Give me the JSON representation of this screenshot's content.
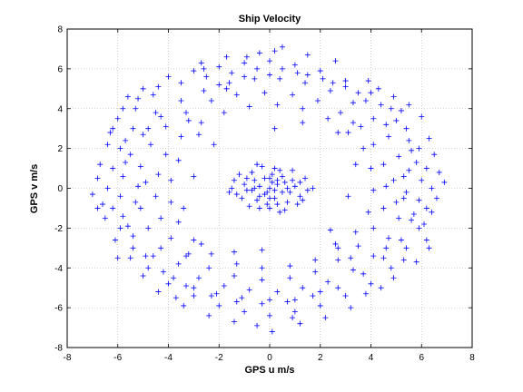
{
  "chart_data": {
    "type": "scatter",
    "title": "Ship Velocity",
    "xlabel": "GPS u m/s",
    "ylabel": "GPS v m/s",
    "xlim": [
      -8,
      8
    ],
    "ylim": [
      -8,
      8
    ],
    "xticks": [
      -8,
      -6,
      -4,
      -2,
      0,
      2,
      4,
      6,
      8
    ],
    "yticks": [
      -8,
      -6,
      -4,
      -2,
      0,
      2,
      4,
      6,
      8
    ],
    "grid": true,
    "marker": "+",
    "color": "#0000ff",
    "series": [
      {
        "values": [
          [
            0.0,
            0.0
          ],
          [
            0.3,
            0.2
          ],
          [
            -0.4,
            0.1
          ],
          [
            0.2,
            -0.5
          ],
          [
            -0.2,
            -0.3
          ],
          [
            0.6,
            0.3
          ],
          [
            -0.6,
            0.4
          ],
          [
            0.1,
            0.7
          ],
          [
            -0.1,
            -0.8
          ],
          [
            0.8,
            -0.2
          ],
          [
            -0.9,
            -0.1
          ],
          [
            0.5,
            0.6
          ],
          [
            -0.5,
            -0.6
          ],
          [
            1.0,
            0.1
          ],
          [
            -1.0,
            0.2
          ],
          [
            0.2,
            1.0
          ],
          [
            0.0,
            -1.0
          ],
          [
            1.2,
            -0.4
          ],
          [
            -1.3,
            -0.3
          ],
          [
            0.7,
            -0.7
          ],
          [
            -0.7,
            0.8
          ],
          [
            1.4,
            0.5
          ],
          [
            -1.5,
            0.0
          ],
          [
            0.4,
            -1.2
          ],
          [
            -0.3,
            1.1
          ],
          [
            1.5,
            -0.1
          ],
          [
            -1.2,
            0.7
          ],
          [
            0.9,
            0.9
          ],
          [
            -0.8,
            -0.9
          ],
          [
            1.1,
            -0.8
          ],
          [
            0.3,
            0.4
          ],
          [
            -0.2,
            0.5
          ],
          [
            0.5,
            -0.2
          ],
          [
            -0.4,
            -0.4
          ],
          [
            0.1,
            0.3
          ],
          [
            -0.1,
            -0.2
          ],
          [
            0.7,
            0.0
          ],
          [
            -0.7,
            -0.1
          ],
          [
            0.0,
            0.5
          ],
          [
            0.0,
            -0.5
          ],
          [
            0.3,
            -0.8
          ],
          [
            -0.6,
            0.0
          ],
          [
            0.9,
            0.4
          ],
          [
            -0.9,
            0.5
          ],
          [
            1.2,
            0.3
          ],
          [
            -1.1,
            -0.5
          ],
          [
            0.4,
            0.9
          ],
          [
            -0.4,
            -1.0
          ],
          [
            1.3,
            -0.6
          ],
          [
            -1.4,
            0.4
          ],
          [
            1.7,
            0.0
          ],
          [
            -1.6,
            -0.2
          ],
          [
            0.6,
            -1.1
          ],
          [
            -0.5,
            1.2
          ],
          [
            0.2,
            -0.1
          ],
          [
            -5.6,
            4.6
          ],
          [
            -5.0,
            5.0
          ],
          [
            -4.0,
            5.6
          ],
          [
            -3.0,
            5.9
          ],
          [
            -2.0,
            6.1
          ],
          [
            -1.0,
            6.3
          ],
          [
            0.0,
            6.4
          ],
          [
            1.0,
            6.2
          ],
          [
            2.0,
            5.9
          ],
          [
            3.0,
            5.4
          ],
          [
            4.0,
            4.8
          ],
          [
            4.8,
            4.0
          ],
          [
            5.4,
            3.0
          ],
          [
            5.9,
            2.0
          ],
          [
            6.2,
            1.0
          ],
          [
            6.4,
            0.0
          ],
          [
            6.2,
            -1.0
          ],
          [
            5.9,
            -2.0
          ],
          [
            5.4,
            -3.0
          ],
          [
            4.8,
            -4.0
          ],
          [
            4.0,
            -4.8
          ],
          [
            3.0,
            -5.4
          ],
          [
            2.0,
            -5.9
          ],
          [
            1.0,
            -6.2
          ],
          [
            0.0,
            -6.4
          ],
          [
            -1.0,
            -6.2
          ],
          [
            -2.0,
            -5.9
          ],
          [
            -3.0,
            -5.4
          ],
          [
            -4.0,
            -4.8
          ],
          [
            -4.8,
            -4.0
          ],
          [
            -5.4,
            -3.0
          ],
          [
            -5.9,
            -2.0
          ],
          [
            -6.2,
            -1.0
          ],
          [
            -6.4,
            0.0
          ],
          [
            -6.2,
            1.0
          ],
          [
            -5.9,
            2.0
          ],
          [
            -5.4,
            3.0
          ],
          [
            -6.0,
            3.5
          ],
          [
            -5.3,
            4.0
          ],
          [
            -4.6,
            4.7
          ],
          [
            -3.5,
            5.3
          ],
          [
            -2.5,
            5.6
          ],
          [
            -1.5,
            5.8
          ],
          [
            -0.5,
            6.0
          ],
          [
            0.5,
            6.0
          ],
          [
            1.5,
            5.7
          ],
          [
            2.5,
            5.3
          ],
          [
            3.5,
            4.8
          ],
          [
            4.4,
            4.2
          ],
          [
            5.0,
            3.4
          ],
          [
            5.5,
            2.4
          ],
          [
            5.8,
            1.3
          ],
          [
            6.0,
            0.4
          ],
          [
            5.9,
            -0.6
          ],
          [
            5.6,
            -1.6
          ],
          [
            5.2,
            -2.6
          ],
          [
            4.5,
            -3.5
          ],
          [
            3.7,
            -4.3
          ],
          [
            2.7,
            -5.0
          ],
          [
            1.7,
            -5.4
          ],
          [
            0.7,
            -5.7
          ],
          [
            -0.3,
            -5.8
          ],
          [
            -1.3,
            -5.7
          ],
          [
            -2.3,
            -5.4
          ],
          [
            -3.3,
            -4.9
          ],
          [
            -4.2,
            -4.2
          ],
          [
            -4.9,
            -3.4
          ],
          [
            -5.4,
            -2.4
          ],
          [
            -5.8,
            -1.4
          ],
          [
            -5.9,
            -0.4
          ],
          [
            -5.8,
            0.6
          ],
          [
            -5.5,
            1.7
          ],
          [
            -5.0,
            2.7
          ],
          [
            -4.3,
            3.6
          ],
          [
            -3.5,
            4.4
          ],
          [
            -2.6,
            4.9
          ],
          [
            -1.6,
            5.3
          ],
          [
            -0.6,
            5.5
          ],
          [
            0.4,
            5.5
          ],
          [
            1.4,
            5.3
          ],
          [
            2.4,
            4.9
          ],
          [
            3.3,
            4.3
          ],
          [
            4.1,
            3.5
          ],
          [
            4.7,
            2.6
          ],
          [
            5.1,
            1.6
          ],
          [
            5.3,
            0.6
          ],
          [
            5.3,
            -0.5
          ],
          [
            5.1,
            -1.5
          ],
          [
            4.7,
            -2.5
          ],
          [
            4.1,
            -3.4
          ],
          [
            3.3,
            -4.1
          ],
          [
            2.3,
            -4.7
          ],
          [
            1.3,
            -5.0
          ],
          [
            0.3,
            -5.2
          ],
          [
            -0.8,
            -5.1
          ],
          [
            -1.8,
            -4.9
          ],
          [
            -2.8,
            -4.5
          ],
          [
            -3.6,
            -3.8
          ],
          [
            -4.3,
            -3.0
          ],
          [
            -4.8,
            -2.0
          ],
          [
            -5.1,
            -1.0
          ],
          [
            -5.2,
            0.1
          ],
          [
            -5.1,
            1.1
          ],
          [
            -4.7,
            2.2
          ],
          [
            -4.1,
            3.1
          ],
          [
            -3.3,
            3.8
          ],
          [
            -2.3,
            4.4
          ],
          [
            -1.3,
            4.7
          ],
          [
            -0.2,
            4.8
          ],
          [
            0.9,
            4.7
          ],
          [
            1.9,
            4.4
          ],
          [
            2.8,
            3.8
          ],
          [
            3.6,
            3.1
          ],
          [
            4.1,
            2.2
          ],
          [
            4.5,
            1.2
          ],
          [
            4.6,
            0.1
          ],
          [
            4.5,
            -1.0
          ],
          [
            4.1,
            -2.0
          ],
          [
            3.5,
            -2.9
          ],
          [
            2.7,
            -3.6
          ],
          [
            1.8,
            -4.2
          ],
          [
            0.8,
            -4.5
          ],
          [
            -0.3,
            -4.6
          ],
          [
            -1.4,
            -4.4
          ],
          [
            -2.4,
            -4.0
          ],
          [
            -3.2,
            -3.3
          ],
          [
            -3.9,
            -2.5
          ],
          [
            -4.3,
            -1.5
          ],
          [
            -4.5,
            -0.4
          ],
          [
            -4.4,
            0.7
          ],
          [
            -4.1,
            1.7
          ],
          [
            -3.5,
            2.6
          ],
          [
            -2.7,
            3.3
          ],
          [
            -1.8,
            3.8
          ],
          [
            -0.8,
            4.1
          ],
          [
            0.3,
            4.2
          ],
          [
            1.3,
            4.0
          ],
          [
            2.3,
            3.5
          ],
          [
            3.1,
            2.8
          ],
          [
            3.7,
            2.0
          ],
          [
            4.0,
            1.0
          ],
          [
            4.1,
            -0.1
          ],
          [
            3.9,
            -1.2
          ],
          [
            3.4,
            -2.2
          ],
          [
            2.7,
            -3.0
          ],
          [
            1.8,
            -3.6
          ],
          [
            0.8,
            -3.9
          ],
          [
            -0.3,
            -4.0
          ],
          [
            -1.3,
            -3.8
          ],
          [
            -2.3,
            -3.3
          ],
          [
            -3.0,
            -2.6
          ],
          [
            -3.6,
            -1.7
          ],
          [
            -3.9,
            -0.7
          ],
          [
            -3.9,
            0.4
          ],
          [
            -3.6,
            1.4
          ],
          [
            -7.0,
            -0.3
          ],
          [
            -6.7,
            1.2
          ],
          [
            -6.5,
            -1.5
          ],
          [
            -6.8,
            0.5
          ],
          [
            -6.3,
            2.8
          ],
          [
            -6.1,
            -2.6
          ],
          [
            -6.6,
            -0.8
          ],
          [
            -6.4,
            2.2
          ],
          [
            -5.8,
            4.0
          ],
          [
            -6.0,
            -3.5
          ],
          [
            6.6,
            -0.5
          ],
          [
            6.7,
            0.8
          ],
          [
            6.3,
            2.5
          ],
          [
            6.2,
            -2.6
          ],
          [
            6.5,
            1.7
          ],
          [
            6.0,
            3.6
          ],
          [
            5.8,
            -3.7
          ],
          [
            6.1,
            -1.8
          ],
          [
            6.4,
            -1.2
          ],
          [
            5.5,
            4.2
          ],
          [
            0.5,
            7.1
          ],
          [
            -0.4,
            6.8
          ],
          [
            1.5,
            6.7
          ],
          [
            -1.7,
            6.6
          ],
          [
            2.6,
            6.4
          ],
          [
            0.2,
            6.9
          ],
          [
            -2.7,
            6.3
          ],
          [
            1.2,
            -6.8
          ],
          [
            -0.5,
            -6.9
          ],
          [
            0.1,
            -7.2
          ],
          [
            -1.4,
            -6.7
          ],
          [
            2.2,
            -6.5
          ],
          [
            -2.4,
            -6.4
          ],
          [
            3.2,
            -6.0
          ],
          [
            -3.4,
            -5.9
          ],
          [
            -5.2,
            4.5
          ],
          [
            -4.4,
            5.1
          ],
          [
            -4.8,
            3.0
          ],
          [
            -4.5,
            3.8
          ],
          [
            -5.7,
            2.4
          ],
          [
            4.3,
            5.0
          ],
          [
            4.9,
            4.6
          ],
          [
            3.9,
            5.4
          ],
          [
            5.2,
            3.9
          ],
          [
            4.6,
            3.2
          ],
          [
            4.4,
            -5.0
          ],
          [
            4.9,
            -4.5
          ],
          [
            5.3,
            -3.6
          ],
          [
            3.8,
            -5.3
          ],
          [
            4.6,
            -3.0
          ],
          [
            -4.4,
            -5.2
          ],
          [
            -5.0,
            -4.4
          ],
          [
            -5.5,
            -3.5
          ],
          [
            -3.7,
            -5.5
          ],
          [
            -4.6,
            -3.4
          ],
          [
            -2.0,
            5.2
          ],
          [
            -1.0,
            5.6
          ],
          [
            0.0,
            5.7
          ],
          [
            1.1,
            5.8
          ],
          [
            2.1,
            5.5
          ],
          [
            3.0,
            5.1
          ],
          [
            3.8,
            4.4
          ],
          [
            2.0,
            -5.2
          ],
          [
            1.0,
            -5.6
          ],
          [
            0.0,
            -5.6
          ],
          [
            -1.1,
            -5.5
          ],
          [
            -2.1,
            -5.3
          ],
          [
            -3.0,
            -5.0
          ],
          [
            -3.8,
            -4.5
          ],
          [
            -2.6,
            6.0
          ],
          [
            -5.6,
            -1.9
          ],
          [
            -5.7,
            1.3
          ],
          [
            -5.3,
            -0.7
          ],
          [
            -4.9,
            0.3
          ],
          [
            5.6,
            1.9
          ],
          [
            5.7,
            -1.3
          ],
          [
            5.0,
            -0.7
          ],
          [
            4.9,
            0.4
          ],
          [
            5.5,
            0.9
          ],
          [
            5.4,
            -0.2
          ],
          [
            -3.2,
            3.4
          ],
          [
            3.3,
            3.3
          ],
          [
            3.2,
            -3.5
          ],
          [
            -3.3,
            -3.4
          ],
          [
            -2.8,
            2.7
          ],
          [
            2.7,
            2.8
          ],
          [
            2.6,
            -2.8
          ],
          [
            -2.7,
            -2.8
          ],
          [
            -3.0,
            0.6
          ],
          [
            3.1,
            -0.4
          ],
          [
            0.2,
            3.0
          ],
          [
            -0.3,
            -3.1
          ],
          [
            -2.2,
            2.2
          ],
          [
            2.4,
            -2.1
          ],
          [
            1.3,
            3.3
          ],
          [
            -1.4,
            -3.2
          ],
          [
            -3.4,
            -1.0
          ],
          [
            3.4,
            1.2
          ],
          [
            -6.2,
            3.0
          ],
          [
            6.3,
            -3.0
          ],
          [
            -0.9,
            6.6
          ],
          [
            0.9,
            -6.5
          ],
          [
            -6.8,
            -1.0
          ],
          [
            6.9,
            0.3
          ],
          [
            -1.7,
            5.0
          ]
        ]
      }
    ]
  }
}
